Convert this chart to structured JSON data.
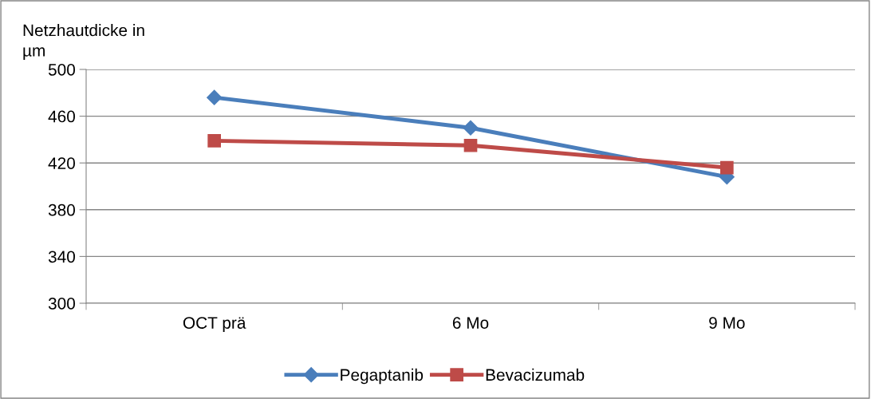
{
  "chart_data": {
    "type": "line",
    "ylabel": "Netzhautdicke in\nµm",
    "categories": [
      "OCT prä",
      "6 Mo",
      "9 Mo"
    ],
    "series": [
      {
        "name": "Pegaptanib",
        "color": "#4a7ebb",
        "marker": "diamond",
        "values": [
          476,
          450,
          408
        ]
      },
      {
        "name": "Bevacizumab",
        "color": "#be4b48",
        "marker": "square",
        "values": [
          439,
          435,
          416
        ]
      }
    ],
    "ylim": [
      300,
      500
    ],
    "yticks": [
      300,
      340,
      380,
      420,
      460,
      500
    ],
    "grid": "y",
    "legend": "bottom"
  }
}
